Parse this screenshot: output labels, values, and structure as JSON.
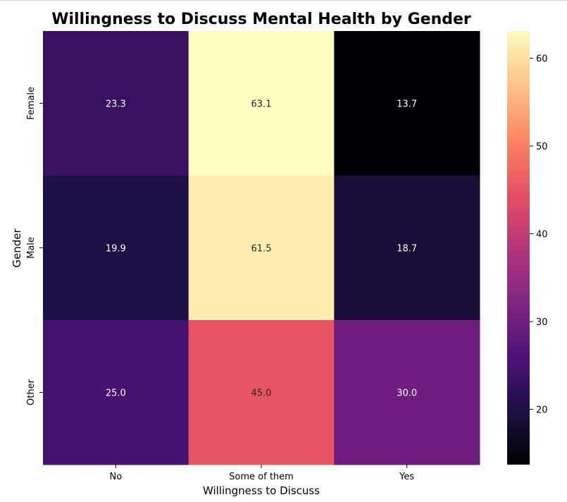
{
  "chart_data": {
    "type": "heatmap",
    "title": "Willingness to Discuss Mental Health by Gender",
    "xlabel": "Willingness to Discuss",
    "ylabel": "Gender",
    "x_categories": [
      "No",
      "Some of them",
      "Yes"
    ],
    "y_categories": [
      "Female",
      "Male",
      "Other"
    ],
    "values": [
      [
        23.3,
        63.1,
        13.7
      ],
      [
        19.9,
        61.5,
        18.7
      ],
      [
        25.0,
        45.0,
        30.0
      ]
    ],
    "colormap": "magma",
    "color_range": [
      13.7,
      63.1
    ],
    "colorbar_ticks": [
      20,
      30,
      40,
      50,
      60
    ],
    "legend": "colorbar-right",
    "grid": false
  }
}
